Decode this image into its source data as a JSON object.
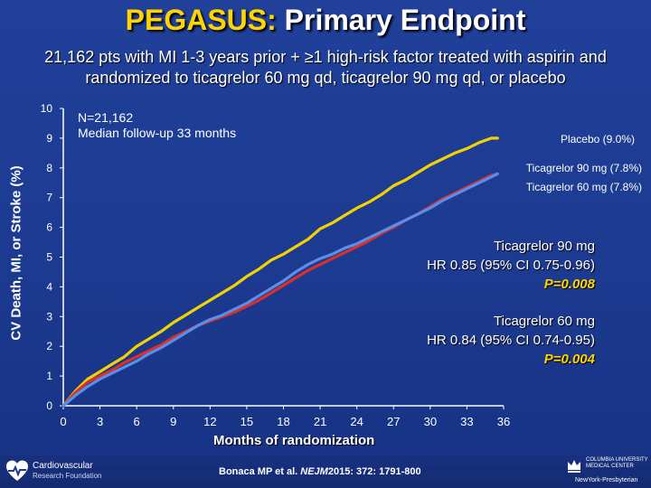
{
  "slide": {
    "title_highlight": "PEGASUS:",
    "title_rest": "Primary Endpoint",
    "subtitle_line1": "21,162 pts with MI 1-3 years prior + ≥1 high-risk factor treated with aspirin and",
    "subtitle_line2": "randomized to ticagrelor 60 mg qd, ticagrelor 90 mg qd, or placebo"
  },
  "annotation": {
    "n": "N=21,162",
    "followup": "Median follow-up 33 months"
  },
  "hr_boxes": [
    {
      "name": "Ticagrelor 90 mg",
      "hr": "HR 0.85 (95% CI 0.75-0.96)",
      "p": "P=0.008"
    },
    {
      "name": "Ticagrelor 60 mg",
      "hr": "HR 0.84 (95% CI 0.74-0.95)",
      "p": "P=0.004"
    }
  ],
  "citation": {
    "before": "Bonaca MP et al.",
    "journal": "NEJM",
    "after": "2015: 372: 1791-800"
  },
  "logos": {
    "crf_line1": "Cardiovascular",
    "crf_line2": "Research Foundation",
    "cu_line1": "COLUMBIA UNIVERSITY MEDICAL CENTER",
    "cu_line2": "NewYork-Presbyterian"
  },
  "colors": {
    "background": "#1c3a90",
    "placebo": "#f2d200",
    "ticagrelor_90": "#d8302a",
    "ticagrelor_60": "#5a8ee8",
    "accent": "#ffd400"
  },
  "chart_data": {
    "type": "line",
    "xlabel": "Months of randomization",
    "ylabel": "CV Death, MI, or Stroke (%)",
    "xlim": [
      0,
      36
    ],
    "ylim": [
      0,
      10
    ],
    "xticks": [
      0,
      3,
      6,
      9,
      12,
      15,
      18,
      21,
      24,
      27,
      30,
      33,
      36
    ],
    "yticks": [
      0,
      1,
      2,
      3,
      4,
      5,
      6,
      7,
      8,
      9,
      10
    ],
    "grid": false,
    "series": [
      {
        "name": "Placebo (9.0%)",
        "color": "#f2d200",
        "x": [
          0,
          1,
          2,
          3,
          4,
          5,
          6,
          7,
          8,
          9,
          10,
          11,
          12,
          13,
          14,
          15,
          16,
          17,
          18,
          19,
          20,
          21,
          22,
          23,
          24,
          25,
          26,
          27,
          28,
          29,
          30,
          31,
          32,
          33,
          34,
          35,
          35.5
        ],
        "values": [
          0,
          0.5,
          0.9,
          1.15,
          1.4,
          1.65,
          2.0,
          2.25,
          2.5,
          2.8,
          3.05,
          3.3,
          3.55,
          3.8,
          4.05,
          4.35,
          4.6,
          4.9,
          5.1,
          5.35,
          5.6,
          5.95,
          6.15,
          6.4,
          6.65,
          6.85,
          7.1,
          7.4,
          7.6,
          7.85,
          8.1,
          8.3,
          8.5,
          8.65,
          8.85,
          9.0,
          9.0
        ]
      },
      {
        "name": "Ticagrelor 90 mg (7.8%)",
        "color": "#d8302a",
        "x": [
          0,
          1,
          2,
          3,
          4,
          5,
          6,
          7,
          8,
          9,
          10,
          11,
          12,
          13,
          14,
          15,
          16,
          17,
          18,
          19,
          20,
          21,
          22,
          23,
          24,
          25,
          26,
          27,
          28,
          29,
          30,
          31,
          32,
          33,
          34,
          35,
          35.5
        ],
        "values": [
          0,
          0.45,
          0.8,
          1.0,
          1.2,
          1.45,
          1.65,
          1.85,
          2.05,
          2.3,
          2.5,
          2.7,
          2.85,
          3.0,
          3.15,
          3.35,
          3.55,
          3.8,
          4.05,
          4.3,
          4.55,
          4.75,
          4.95,
          5.15,
          5.35,
          5.55,
          5.8,
          6.0,
          6.25,
          6.45,
          6.7,
          6.95,
          7.15,
          7.35,
          7.55,
          7.75,
          7.8
        ]
      },
      {
        "name": "Ticagrelor 60 mg (7.8%)",
        "color": "#5a8ee8",
        "x": [
          0,
          1,
          2,
          3,
          4,
          5,
          6,
          7,
          8,
          9,
          10,
          11,
          12,
          13,
          14,
          15,
          16,
          17,
          18,
          19,
          20,
          21,
          22,
          23,
          24,
          25,
          26,
          27,
          28,
          29,
          30,
          31,
          32,
          33,
          34,
          35,
          35.5
        ],
        "values": [
          0,
          0.35,
          0.65,
          0.9,
          1.1,
          1.3,
          1.5,
          1.75,
          1.95,
          2.2,
          2.45,
          2.7,
          2.9,
          3.05,
          3.25,
          3.45,
          3.7,
          3.95,
          4.2,
          4.5,
          4.75,
          4.95,
          5.1,
          5.3,
          5.45,
          5.65,
          5.85,
          6.05,
          6.25,
          6.45,
          6.65,
          6.9,
          7.1,
          7.3,
          7.5,
          7.7,
          7.8
        ]
      }
    ]
  }
}
